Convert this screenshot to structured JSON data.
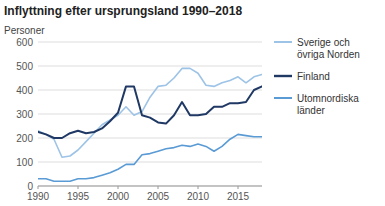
{
  "chart_data": {
    "type": "line",
    "title": "Inflyttning efter ursprungsland 1990–2018",
    "ylabel": "Personer",
    "x": [
      1990,
      1991,
      1992,
      1993,
      1994,
      1995,
      1996,
      1997,
      1998,
      1999,
      2000,
      2001,
      2002,
      2003,
      2004,
      2005,
      2006,
      2007,
      2008,
      2009,
      2010,
      2011,
      2012,
      2013,
      2014,
      2015,
      2016,
      2017,
      2018
    ],
    "series": [
      {
        "name": "Sverige och\növriga Norden",
        "color": "#9DC3E6",
        "values": [
          230,
          215,
          195,
          120,
          125,
          150,
          185,
          220,
          255,
          275,
          295,
          330,
          295,
          310,
          370,
          415,
          420,
          450,
          490,
          490,
          470,
          420,
          415,
          430,
          440,
          455,
          430,
          455,
          465
        ]
      },
      {
        "name": "Finland",
        "color": "#1F3864",
        "values": [
          225,
          215,
          200,
          200,
          220,
          230,
          220,
          225,
          240,
          270,
          305,
          415,
          415,
          295,
          285,
          265,
          260,
          295,
          350,
          295,
          295,
          300,
          330,
          330,
          345,
          345,
          350,
          400,
          415
        ]
      },
      {
        "name": "Utomnordiska\nländer",
        "color": "#5B9BD5",
        "values": [
          30,
          30,
          20,
          20,
          20,
          30,
          30,
          35,
          45,
          55,
          70,
          90,
          90,
          130,
          135,
          145,
          155,
          160,
          170,
          165,
          175,
          165,
          145,
          165,
          195,
          215,
          210,
          205,
          205
        ]
      }
    ],
    "xlim": [
      1990,
      2018
    ],
    "xticks": [
      1990,
      1995,
      2000,
      2005,
      2010,
      2015
    ],
    "ylim": [
      0,
      600
    ],
    "yticks": [
      0,
      100,
      200,
      300,
      400,
      500,
      600
    ],
    "grid": true,
    "legend": "right"
  }
}
